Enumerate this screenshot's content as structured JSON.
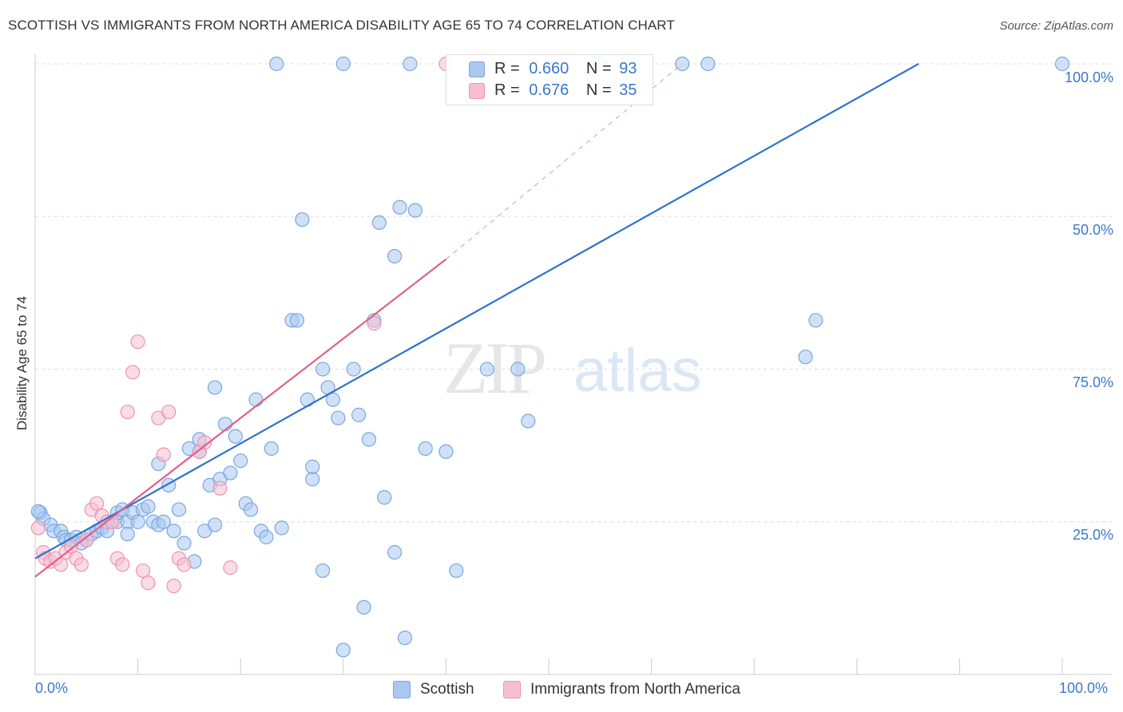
{
  "title": "SCOTTISH VS IMMIGRANTS FROM NORTH AMERICA DISABILITY AGE 65 TO 74 CORRELATION CHART",
  "source": "Source: ZipAtlas.com",
  "watermark": {
    "zip": "ZIP",
    "atlas": "atlas"
  },
  "legend_top": {
    "row1": {
      "r_label": "R =",
      "r_value": "0.660",
      "n_label": "N =",
      "n_value": "93"
    },
    "row2": {
      "r_label": "R =",
      "r_value": "0.676",
      "n_label": "N =",
      "n_value": "35"
    }
  },
  "colors": {
    "blue_fill": "#a9c8f0",
    "blue_stroke": "#7aa6e0",
    "blue_line": "#2f72cc",
    "pink_fill": "#f6bfd0",
    "pink_stroke": "#ee93b0",
    "pink_line": "#e0608a",
    "axis_text": "#3b78c9",
    "grid": "#dddddd"
  },
  "chart_data": {
    "type": "scatter",
    "title": "SCOTTISH VS IMMIGRANTS FROM NORTH AMERICA DISABILITY AGE 65 TO 74 CORRELATION CHART",
    "xlabel": "",
    "ylabel": "Disability Age 65 to 74",
    "xlim": [
      0,
      100
    ],
    "ylim": [
      0,
      100
    ],
    "x_tick_labels": [
      "0.0%",
      "100.0%"
    ],
    "y_tick_labels": [
      "25.0%",
      "50.0%",
      "75.0%",
      "100.0%"
    ],
    "y_ticks": [
      25,
      50,
      75,
      100
    ],
    "grid": true,
    "legend_position": "bottom",
    "series": [
      {
        "name": "Scottish",
        "r": 0.66,
        "n": 93,
        "trend": {
          "x": [
            0,
            86
          ],
          "y": [
            19.0,
            100
          ]
        },
        "points": [
          [
            0.5,
            26.5
          ],
          [
            0.8,
            25.5
          ],
          [
            1.5,
            24.5
          ],
          [
            1.8,
            23.5
          ],
          [
            2.5,
            23.5
          ],
          [
            2.8,
            22.5
          ],
          [
            3,
            22
          ],
          [
            3.5,
            22
          ],
          [
            4,
            22.5
          ],
          [
            4.5,
            21.5
          ],
          [
            5,
            22
          ],
          [
            5.5,
            23
          ],
          [
            6,
            23.5
          ],
          [
            6.5,
            24
          ],
          [
            7,
            23.5
          ],
          [
            7.5,
            25
          ],
          [
            8,
            25
          ],
          [
            8,
            26.5
          ],
          [
            8.5,
            27
          ],
          [
            9,
            25
          ],
          [
            9,
            23
          ],
          [
            9.5,
            26.5
          ],
          [
            10,
            25
          ],
          [
            10.5,
            27
          ],
          [
            11,
            27.5
          ],
          [
            11.5,
            25
          ],
          [
            12,
            24.5
          ],
          [
            12,
            34.5
          ],
          [
            12.5,
            25
          ],
          [
            13,
            31
          ],
          [
            13.5,
            23.5
          ],
          [
            14,
            27
          ],
          [
            14.5,
            21.5
          ],
          [
            15,
            37
          ],
          [
            15.5,
            18.5
          ],
          [
            16,
            38.5
          ],
          [
            16,
            36.5
          ],
          [
            16.5,
            23.5
          ],
          [
            17,
            31
          ],
          [
            17.5,
            24.5
          ],
          [
            17.5,
            47
          ],
          [
            18,
            32
          ],
          [
            18.5,
            41
          ],
          [
            19,
            33
          ],
          [
            19.5,
            39
          ],
          [
            20,
            35
          ],
          [
            20.5,
            28
          ],
          [
            21,
            27
          ],
          [
            21.5,
            45
          ],
          [
            22,
            23.5
          ],
          [
            22.5,
            22.5
          ],
          [
            23,
            37
          ],
          [
            24,
            24
          ],
          [
            25,
            58
          ],
          [
            25.5,
            58
          ],
          [
            26,
            74.5
          ],
          [
            26.5,
            45
          ],
          [
            27,
            32
          ],
          [
            27,
            34
          ],
          [
            28,
            50
          ],
          [
            28,
            17
          ],
          [
            28.5,
            47
          ],
          [
            29,
            45
          ],
          [
            29.5,
            42
          ],
          [
            30,
            4
          ],
          [
            31,
            50
          ],
          [
            31.5,
            42.5
          ],
          [
            32,
            11
          ],
          [
            32.5,
            38.5
          ],
          [
            33,
            58
          ],
          [
            33.5,
            74
          ],
          [
            34,
            29
          ],
          [
            35,
            68.5
          ],
          [
            35,
            20
          ],
          [
            35.5,
            76.5
          ],
          [
            36,
            6
          ],
          [
            37,
            76
          ],
          [
            38,
            37
          ],
          [
            40,
            36.5
          ],
          [
            41,
            17
          ],
          [
            44,
            50
          ],
          [
            47,
            50
          ],
          [
            48,
            41.5
          ],
          [
            75,
            52
          ],
          [
            76,
            58
          ],
          [
            23.5,
            100
          ],
          [
            30,
            100
          ],
          [
            36.5,
            100
          ],
          [
            55,
            100
          ],
          [
            63,
            100
          ],
          [
            65.5,
            100
          ],
          [
            100,
            100
          ],
          [
            0.3,
            26.7
          ]
        ]
      },
      {
        "name": "Immigrants from North America",
        "r": 0.676,
        "n": 35,
        "trend": {
          "x": [
            0,
            40
          ],
          "y": [
            16,
            68
          ]
        },
        "trend_dashed": {
          "x": [
            40,
            63
          ],
          "y": [
            68,
            100
          ]
        },
        "points": [
          [
            0.3,
            24
          ],
          [
            0.8,
            20
          ],
          [
            1,
            19
          ],
          [
            1.5,
            18.5
          ],
          [
            2,
            19
          ],
          [
            2.5,
            18
          ],
          [
            3,
            20
          ],
          [
            3.5,
            21
          ],
          [
            4,
            19
          ],
          [
            4.5,
            18
          ],
          [
            5,
            22
          ],
          [
            5.5,
            27
          ],
          [
            6,
            28
          ],
          [
            6.5,
            26
          ],
          [
            7,
            25
          ],
          [
            7.5,
            25
          ],
          [
            8,
            19
          ],
          [
            8.5,
            18
          ],
          [
            9,
            43
          ],
          [
            9.5,
            49.5
          ],
          [
            10,
            54.5
          ],
          [
            10.5,
            17
          ],
          [
            11,
            15
          ],
          [
            12,
            42
          ],
          [
            12.5,
            36
          ],
          [
            13,
            43
          ],
          [
            13.5,
            14.5
          ],
          [
            14,
            19
          ],
          [
            14.5,
            18
          ],
          [
            16,
            36.5
          ],
          [
            16.5,
            38
          ],
          [
            18,
            30.5
          ],
          [
            19,
            17.5
          ],
          [
            33,
            57.5
          ],
          [
            40,
            100
          ]
        ]
      }
    ]
  },
  "bottom_legend": [
    {
      "label": "Scottish"
    },
    {
      "label": "Immigrants from North America"
    }
  ]
}
